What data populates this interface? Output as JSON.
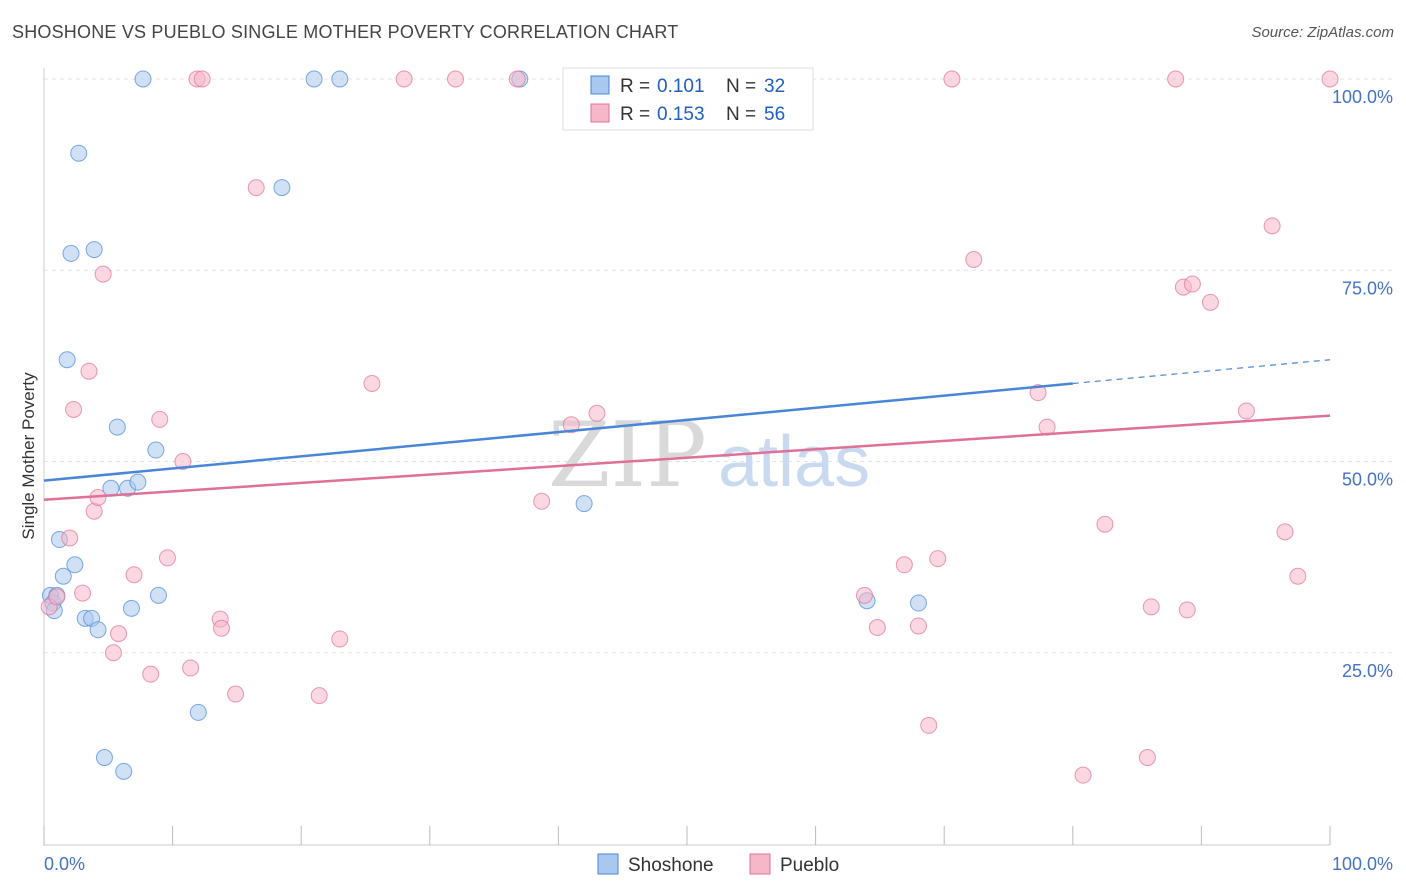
{
  "header": {
    "title": "SHOSHONE VS PUEBLO SINGLE MOTHER POVERTY CORRELATION CHART",
    "source": "Source: ZipAtlas.com"
  },
  "watermark": {
    "zip": "ZIP",
    "atlas": "atlas"
  },
  "legend_box": {
    "rows": [
      {
        "r_label": "R =",
        "r_value": "0.101",
        "n_label": "N =",
        "n_value": "32",
        "color": "#a9c8ef"
      },
      {
        "r_label": "R =",
        "r_value": "0.153",
        "n_label": "N =",
        "n_value": "56",
        "color": "#f5b7c9"
      }
    ]
  },
  "bottom_legend": {
    "items": [
      {
        "label": "Shoshone",
        "color": "#a9c8ef"
      },
      {
        "label": "Pueblo",
        "color": "#f5b7c9"
      }
    ]
  },
  "chart_data": {
    "type": "scatter",
    "title": "SHOSHONE VS PUEBLO SINGLE MOTHER POVERTY CORRELATION CHART",
    "xlabel": "",
    "ylabel": "Single Mother Poverty",
    "xlim": [
      0,
      100
    ],
    "ylim": [
      0,
      100
    ],
    "x_tick_labels": {
      "left": "0.0%",
      "right": "100.0%"
    },
    "y_ticks": [
      {
        "value": 25,
        "label": "25.0%"
      },
      {
        "value": 50,
        "label": "50.0%"
      },
      {
        "value": 75,
        "label": "75.0%"
      },
      {
        "value": 100,
        "label": "100.0%"
      }
    ],
    "grid": true,
    "series": [
      {
        "name": "Shoshone",
        "color": "#4a86d8",
        "fill": "#a9c8ef",
        "trend": {
          "x0": 0,
          "y0": 47.5,
          "x1": 80,
          "y1": 60.2,
          "dash_to_x": 100,
          "dash_to_y": 63.3
        },
        "points": [
          [
            0.5,
            32.5
          ],
          [
            0.7,
            31.5
          ],
          [
            0.8,
            30.5
          ],
          [
            1.0,
            32.5
          ],
          [
            1.2,
            39.8
          ],
          [
            1.5,
            35.0
          ],
          [
            1.8,
            63.3
          ],
          [
            2.1,
            77.2
          ],
          [
            2.4,
            36.5
          ],
          [
            2.7,
            90.3
          ],
          [
            3.2,
            29.5
          ],
          [
            3.7,
            29.5
          ],
          [
            3.9,
            77.7
          ],
          [
            4.2,
            28.0
          ],
          [
            4.7,
            11.3
          ],
          [
            5.2,
            46.5
          ],
          [
            5.7,
            54.5
          ],
          [
            6.2,
            9.5
          ],
          [
            6.5,
            46.5
          ],
          [
            6.8,
            30.8
          ],
          [
            7.3,
            47.3
          ],
          [
            7.7,
            100
          ],
          [
            8.7,
            51.5
          ],
          [
            8.9,
            32.5
          ],
          [
            12.0,
            17.2
          ],
          [
            18.5,
            85.8
          ],
          [
            21.0,
            100
          ],
          [
            23.0,
            100
          ],
          [
            37.0,
            100
          ],
          [
            42.0,
            44.5
          ],
          [
            64.0,
            31.8
          ],
          [
            68.0,
            31.5
          ]
        ]
      },
      {
        "name": "Pueblo",
        "color": "#e07095",
        "fill": "#f5b7c9",
        "trend": {
          "x0": 0,
          "y0": 45.0,
          "x1": 100,
          "y1": 56.0
        },
        "points": [
          [
            0.4,
            31.0
          ],
          [
            1.0,
            32.3
          ],
          [
            2.0,
            40.0
          ],
          [
            2.3,
            56.8
          ],
          [
            3.0,
            32.8
          ],
          [
            3.5,
            61.8
          ],
          [
            3.9,
            43.5
          ],
          [
            4.2,
            45.3
          ],
          [
            4.6,
            74.5
          ],
          [
            5.4,
            25.0
          ],
          [
            5.8,
            27.5
          ],
          [
            7.0,
            35.2
          ],
          [
            8.3,
            22.2
          ],
          [
            9.0,
            55.5
          ],
          [
            9.6,
            37.4
          ],
          [
            10.8,
            50.0
          ],
          [
            11.4,
            23.0
          ],
          [
            11.9,
            100
          ],
          [
            12.3,
            100
          ],
          [
            13.7,
            29.4
          ],
          [
            13.8,
            28.2
          ],
          [
            14.9,
            19.6
          ],
          [
            16.5,
            85.8
          ],
          [
            21.4,
            19.4
          ],
          [
            23.0,
            26.8
          ],
          [
            25.5,
            60.2
          ],
          [
            32.0,
            100
          ],
          [
            36.8,
            100
          ],
          [
            38.7,
            44.8
          ],
          [
            41.0,
            54.8
          ],
          [
            43.0,
            56.3
          ],
          [
            63.8,
            32.5
          ],
          [
            64.8,
            28.3
          ],
          [
            66.9,
            36.5
          ],
          [
            68.0,
            28.5
          ],
          [
            68.8,
            15.5
          ],
          [
            69.5,
            37.3
          ],
          [
            70.6,
            100
          ],
          [
            72.3,
            76.4
          ],
          [
            77.3,
            59.0
          ],
          [
            78.0,
            54.5
          ],
          [
            80.8,
            9.0
          ],
          [
            82.5,
            41.8
          ],
          [
            88.0,
            100
          ],
          [
            85.8,
            11.3
          ],
          [
            86.1,
            31.0
          ],
          [
            88.6,
            72.8
          ],
          [
            89.3,
            73.2
          ],
          [
            88.9,
            30.6
          ],
          [
            90.7,
            70.8
          ],
          [
            93.5,
            56.6
          ],
          [
            95.5,
            80.8
          ],
          [
            96.5,
            40.8
          ],
          [
            97.5,
            35.0
          ],
          [
            100,
            100
          ],
          [
            28.0,
            100
          ]
        ]
      }
    ]
  }
}
